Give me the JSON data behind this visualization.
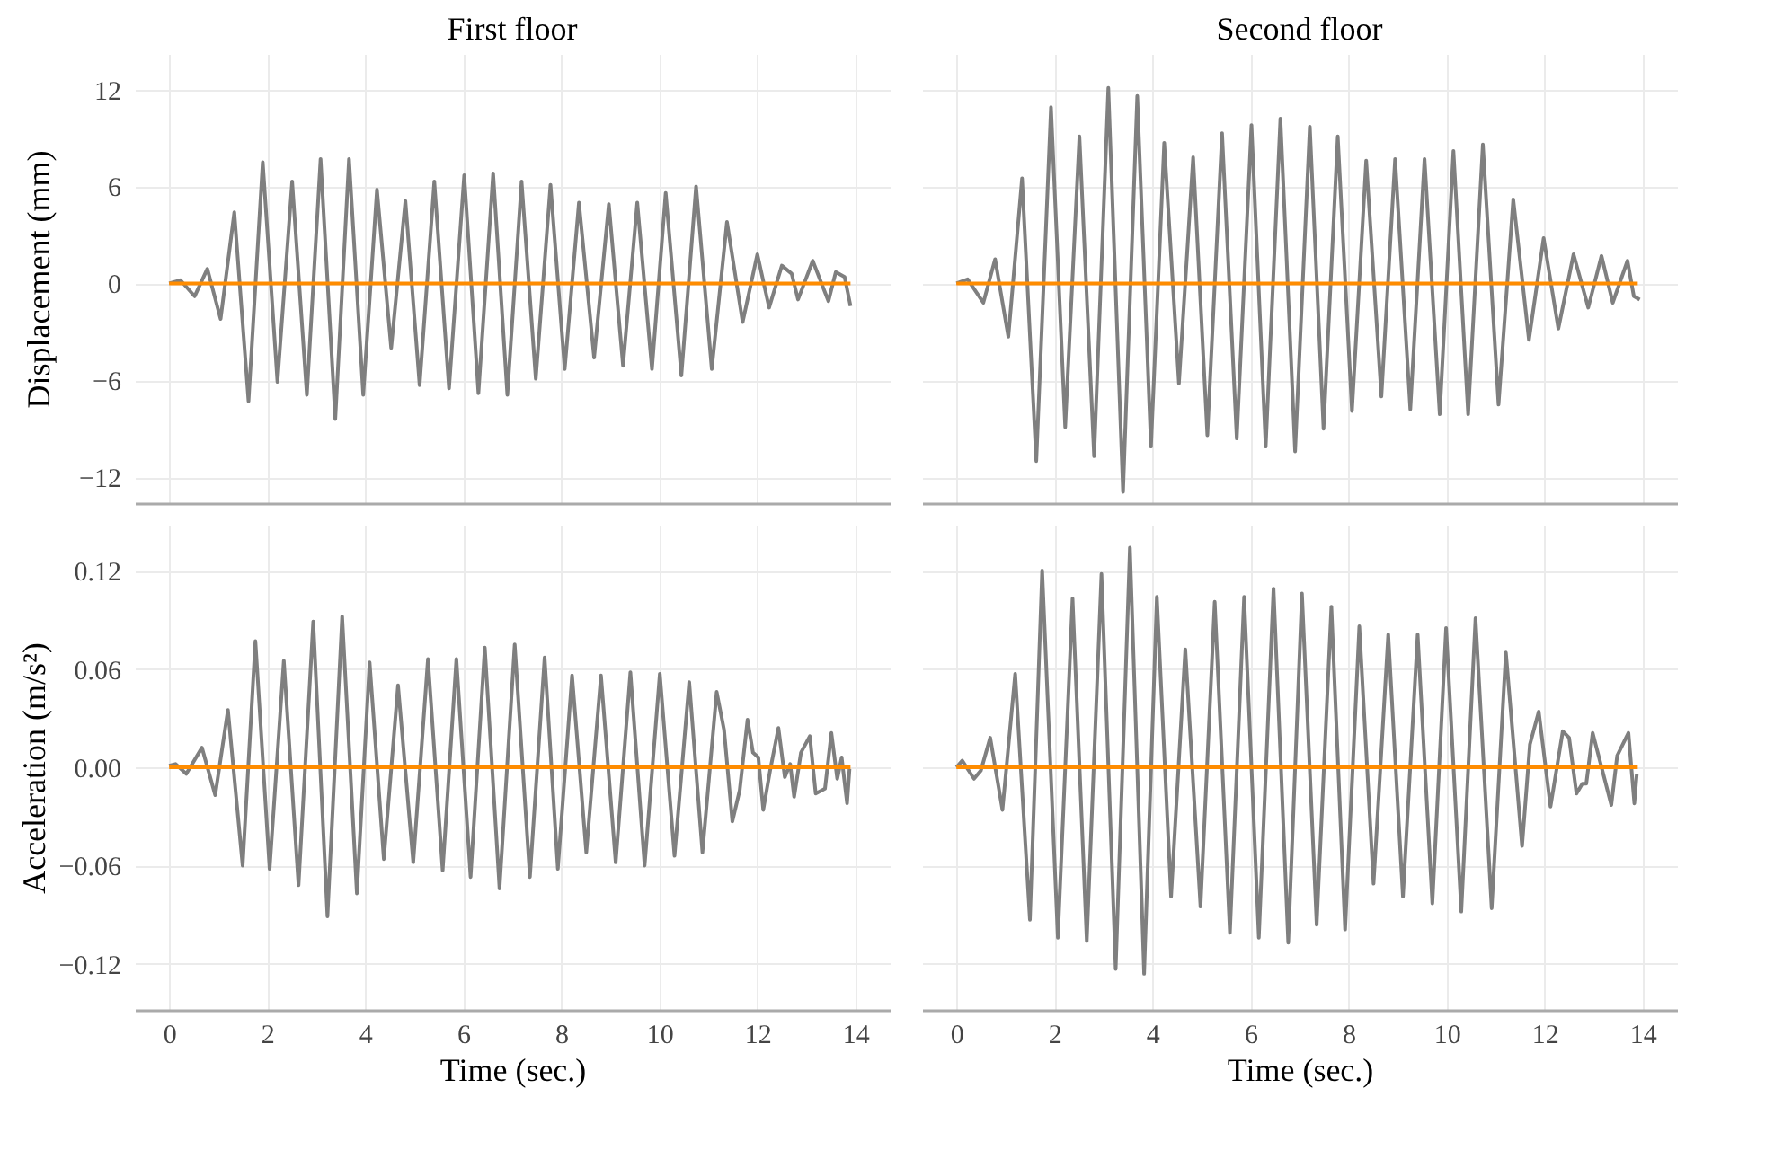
{
  "chart_data": [
    {
      "type": "line",
      "title": "First floor",
      "ylabel": "Displacement (mm)",
      "xlim": [
        -0.7,
        14.7
      ],
      "ylim": [
        -13.6,
        14.2
      ],
      "xticks": [
        0,
        2,
        4,
        6,
        8,
        10,
        12,
        14
      ],
      "yticks": [
        {
          "value": -12,
          "label": "−12"
        },
        {
          "value": -6,
          "label": "−6"
        },
        0,
        6,
        12
      ],
      "grid": true,
      "tick_labels": "y",
      "series": [
        {
          "color": "#7f7f7f",
          "x": [
            0,
            0.23,
            0.52,
            0.78,
            1.05,
            1.33,
            1.62,
            1.91,
            2.21,
            2.51,
            2.81,
            3.09,
            3.39,
            3.67,
            3.96,
            4.24,
            4.53,
            4.82,
            5.11,
            5.41,
            5.71,
            6.02,
            6.31,
            6.61,
            6.9,
            7.19,
            7.48,
            7.78,
            8.07,
            8.36,
            8.67,
            8.97,
            9.26,
            9.55,
            9.85,
            10.13,
            10.45,
            10.75,
            11.07,
            11.38,
            11.7,
            12.0,
            12.24,
            12.5,
            12.7,
            12.83,
            13.13,
            13.45,
            13.6,
            13.78,
            13.9
          ],
          "values": [
            0,
            0.2,
            -0.8,
            0.9,
            -2.2,
            4.4,
            -7.3,
            7.5,
            -6.1,
            6.3,
            -6.9,
            7.7,
            -8.4,
            7.7,
            -6.9,
            5.8,
            -4.0,
            5.1,
            -6.3,
            6.3,
            -6.5,
            6.7,
            -6.8,
            6.8,
            -6.9,
            6.3,
            -5.9,
            6.1,
            -5.3,
            5.0,
            -4.6,
            4.9,
            -5.1,
            5.0,
            -5.3,
            5.6,
            -5.7,
            6.0,
            -5.3,
            3.8,
            -2.4,
            1.8,
            -1.5,
            1.1,
            0.6,
            -1.0,
            1.4,
            -1.1,
            0.7,
            0.4,
            -1.4
          ]
        },
        {
          "color": "#ff8c00",
          "x": [
            0,
            13.9
          ],
          "values": [
            0,
            0
          ]
        }
      ]
    },
    {
      "type": "line",
      "title": "Second floor",
      "xlim": [
        -0.7,
        14.7
      ],
      "ylim": [
        -13.6,
        14.2
      ],
      "xticks": [
        0,
        2,
        4,
        6,
        8,
        10,
        12,
        14
      ],
      "yticks": [
        {
          "value": -12,
          "label": null
        },
        {
          "value": -6,
          "label": null
        },
        {
          "value": 0,
          "label": null
        },
        {
          "value": 6,
          "label": null
        },
        {
          "value": 12,
          "label": null
        }
      ],
      "grid": true,
      "tick_labels": false,
      "series": [
        {
          "color": "#7f7f7f",
          "x": [
            0,
            0.23,
            0.55,
            0.79,
            1.06,
            1.34,
            1.63,
            1.93,
            2.22,
            2.51,
            2.81,
            3.1,
            3.4,
            3.69,
            3.97,
            4.24,
            4.54,
            4.83,
            5.12,
            5.42,
            5.72,
            6.02,
            6.31,
            6.61,
            6.91,
            7.21,
            7.49,
            7.78,
            8.07,
            8.36,
            8.67,
            8.95,
            9.26,
            9.55,
            9.86,
            10.14,
            10.44,
            10.74,
            11.06,
            11.36,
            11.68,
            11.98,
            12.28,
            12.59,
            12.89,
            13.16,
            13.39,
            13.69,
            13.82,
            13.94
          ],
          "values": [
            0,
            0.25,
            -1.2,
            1.5,
            -3.3,
            6.5,
            -11.0,
            10.9,
            -8.9,
            9.1,
            -10.7,
            12.1,
            -12.9,
            11.6,
            -10.1,
            8.7,
            -6.2,
            7.8,
            -9.4,
            9.3,
            -9.6,
            9.8,
            -10.1,
            10.2,
            -10.4,
            9.7,
            -9.0,
            9.1,
            -7.9,
            7.6,
            -7.0,
            7.7,
            -7.8,
            7.7,
            -8.1,
            8.2,
            -8.1,
            8.6,
            -7.5,
            5.2,
            -3.5,
            2.8,
            -2.8,
            1.8,
            -1.5,
            1.7,
            -1.2,
            1.4,
            -0.8,
            -1.0
          ]
        },
        {
          "color": "#ff8c00",
          "x": [
            0,
            13.9
          ],
          "values": [
            0,
            0
          ]
        }
      ]
    },
    {
      "type": "line",
      "ylabel": "Acceleration (m/s²)",
      "xlabel": "Time (sec.)",
      "xlim": [
        -0.7,
        14.7
      ],
      "ylim": [
        -0.148,
        0.148
      ],
      "xticks": [
        0,
        2,
        4,
        6,
        8,
        10,
        12,
        14
      ],
      "yticks": [
        {
          "value": -0.12,
          "label": "−0.12"
        },
        {
          "value": -0.06,
          "label": "−0.06"
        },
        {
          "value": 0,
          "label": "0.00"
        },
        {
          "value": 0.06,
          "label": "0.06"
        },
        {
          "value": 0.12,
          "label": "0.12"
        }
      ],
      "grid": true,
      "series": [
        {
          "color": "#7f7f7f",
          "x": [
            0,
            0.13,
            0.35,
            0.67,
            0.94,
            1.2,
            1.5,
            1.76,
            2.05,
            2.34,
            2.64,
            2.94,
            3.23,
            3.53,
            3.83,
            4.09,
            4.38,
            4.67,
            4.98,
            5.28,
            5.58,
            5.86,
            6.15,
            6.44,
            6.74,
            7.05,
            7.36,
            7.66,
            7.93,
            8.22,
            8.51,
            8.81,
            9.11,
            9.41,
            9.7,
            10.01,
            10.31,
            10.61,
            10.88,
            11.17,
            11.32,
            11.49,
            11.64,
            11.8,
            11.91,
            12.02,
            12.12,
            12.26,
            12.43,
            12.56,
            12.67,
            12.75,
            12.89,
            13.07,
            13.19,
            13.38,
            13.51,
            13.63,
            13.72,
            13.83,
            13.88
          ],
          "values": [
            0.001,
            0.002,
            -0.004,
            0.012,
            -0.017,
            0.035,
            -0.06,
            0.077,
            -0.062,
            0.065,
            -0.072,
            0.089,
            -0.091,
            0.092,
            -0.077,
            0.064,
            -0.056,
            0.05,
            -0.058,
            0.066,
            -0.063,
            0.066,
            -0.067,
            0.073,
            -0.074,
            0.075,
            -0.067,
            0.067,
            -0.062,
            0.056,
            -0.052,
            0.056,
            -0.058,
            0.058,
            -0.06,
            0.057,
            -0.054,
            0.052,
            -0.052,
            0.046,
            0.023,
            -0.033,
            -0.014,
            0.029,
            0.009,
            0.006,
            -0.026,
            -0.002,
            0.024,
            -0.006,
            0.002,
            -0.018,
            0.009,
            0.019,
            -0.016,
            -0.013,
            0.021,
            -0.007,
            0.006,
            -0.022,
            -0.001
          ]
        },
        {
          "color": "#ff8c00",
          "x": [
            0,
            13.9
          ],
          "values": [
            0,
            0
          ]
        }
      ]
    },
    {
      "type": "line",
      "xlabel": "Time (sec.)",
      "xlim": [
        -0.7,
        14.7
      ],
      "ylim": [
        -0.148,
        0.148
      ],
      "xticks": [
        0,
        2,
        4,
        6,
        8,
        10,
        12,
        14
      ],
      "yticks": [
        {
          "value": -0.12,
          "label": null
        },
        {
          "value": -0.06,
          "label": null
        },
        {
          "value": 0,
          "label": null
        },
        {
          "value": 0.06,
          "label": null
        },
        {
          "value": 0.12,
          "label": null
        }
      ],
      "grid": true,
      "tick_labels": "x",
      "series": [
        {
          "color": "#7f7f7f",
          "x": [
            0,
            0.12,
            0.36,
            0.5,
            0.69,
            0.94,
            1.2,
            1.5,
            1.75,
            2.07,
            2.37,
            2.66,
            2.96,
            3.25,
            3.54,
            3.83,
            4.09,
            4.38,
            4.67,
            4.98,
            5.27,
            5.58,
            5.87,
            6.17,
            6.47,
            6.77,
            7.05,
            7.35,
            7.65,
            7.93,
            8.22,
            8.51,
            8.81,
            9.11,
            9.41,
            9.71,
            9.99,
            10.3,
            10.59,
            10.92,
            11.21,
            11.54,
            11.7,
            11.88,
            12.12,
            12.37,
            12.5,
            12.65,
            12.77,
            12.85,
            12.98,
            13.36,
            13.48,
            13.71,
            13.83,
            13.88
          ],
          "values": [
            0,
            0.004,
            -0.007,
            -0.002,
            0.018,
            -0.026,
            0.057,
            -0.093,
            0.12,
            -0.104,
            0.103,
            -0.106,
            0.118,
            -0.123,
            0.134,
            -0.126,
            0.104,
            -0.079,
            0.072,
            -0.085,
            0.101,
            -0.101,
            0.104,
            -0.104,
            0.109,
            -0.107,
            0.106,
            -0.096,
            0.098,
            -0.099,
            0.086,
            -0.071,
            0.081,
            -0.079,
            0.081,
            -0.083,
            0.085,
            -0.088,
            0.091,
            -0.086,
            0.07,
            -0.048,
            0.014,
            0.034,
            -0.024,
            0.022,
            0.018,
            -0.016,
            -0.01,
            -0.01,
            0.021,
            -0.023,
            0.007,
            0.021,
            -0.022,
            -0.004
          ]
        },
        {
          "color": "#ff8c00",
          "x": [
            0,
            13.9
          ],
          "values": [
            0,
            0
          ]
        }
      ]
    }
  ]
}
